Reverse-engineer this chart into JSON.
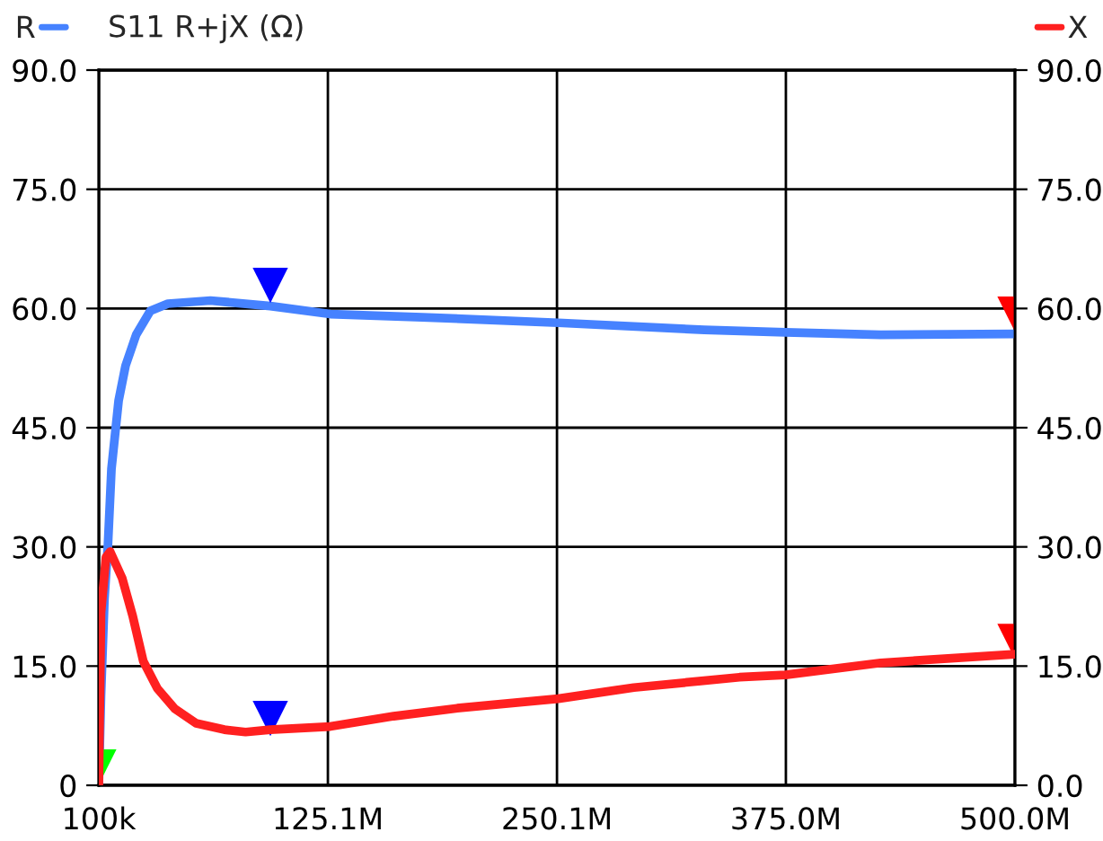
{
  "chart_data": {
    "type": "line",
    "title": "S11 R+jX (Ω)",
    "xlim": [
      100000,
      500000000
    ],
    "xticks": [
      {
        "value": 100000,
        "label": "100k"
      },
      {
        "value": 125100000,
        "label": "125.1M"
      },
      {
        "value": 250100000,
        "label": "250.1M"
      },
      {
        "value": 375000000,
        "label": "375.0M"
      },
      {
        "value": 500000000,
        "label": "500.0M"
      }
    ],
    "ylim": [
      0,
      90
    ],
    "yticks": [
      {
        "value": 0,
        "label": "0"
      },
      {
        "value": 15,
        "label": "15.0"
      },
      {
        "value": 30,
        "label": "30.0"
      },
      {
        "value": 45,
        "label": "45.0"
      },
      {
        "value": 60,
        "label": "60.0"
      },
      {
        "value": 75,
        "label": "75.0"
      },
      {
        "value": 90,
        "label": "90.0"
      }
    ],
    "y2lim": [
      0,
      90
    ],
    "y2ticks": [
      {
        "value": 0,
        "label": "0.0"
      },
      {
        "value": 15,
        "label": "15.0"
      },
      {
        "value": 30,
        "label": "30.0"
      },
      {
        "value": 45,
        "label": "45.0"
      },
      {
        "value": 60,
        "label": "60.0"
      },
      {
        "value": 75,
        "label": "75.0"
      },
      {
        "value": 90,
        "label": "90.0"
      }
    ],
    "grid": true,
    "legend": "top",
    "line_style": "solid",
    "series": [
      {
        "name": "R",
        "color": "#4682ff",
        "x": [
          100000,
          1300000,
          3200000,
          5100000,
          7000000,
          10900000,
          14700000,
          20500000,
          28200000,
          37800000,
          61000000,
          93700000,
          126400000,
          176500000,
          250800000,
          330500000,
          374800000,
          426700000,
          500000000
        ],
        "values": [
          0,
          11.3,
          23.5,
          30.3,
          39.8,
          48.4,
          52.8,
          56.7,
          59.7,
          60.6,
          61,
          60.3,
          59.3,
          58.9,
          58.2,
          57.3,
          57.0,
          56.7,
          56.8
        ]
      },
      {
        "name": "X",
        "color": "#ff2020",
        "axis": "y2",
        "x": [
          100000,
          1300000,
          4000000,
          6300000,
          12800000,
          18600000,
          24400000,
          32000000,
          41700000,
          53200000,
          68600000,
          80200000,
          93700000,
          126400000,
          161000000,
          195700000,
          250800000,
          292000000,
          349700000,
          374800000,
          426700000,
          500000000
        ],
        "values": [
          0,
          21.7,
          28.7,
          29.4,
          26.1,
          21.3,
          15.6,
          12.2,
          9.6,
          7.8,
          7.0,
          6.7,
          7.0,
          7.4,
          8.7,
          9.7,
          10.9,
          12.3,
          13.6,
          13.9,
          15.4,
          16.5
        ]
      },
      {
        "type": "scatter",
        "marker": "triangle",
        "color": "#0000ff",
        "x": [
          93700000,
          93700000
        ],
        "values": [
          62.9,
          8.4
        ]
      },
      {
        "type": "scatter",
        "marker": "triangle",
        "color": "#ff0000",
        "x": [
          500000000,
          500000000
        ],
        "values": [
          59.3,
          18.1
        ]
      },
      {
        "type": "scatter",
        "marker": "triangle",
        "color": "#00ff00",
        "x": [
          100000
        ],
        "values": [
          2.3
        ]
      }
    ]
  }
}
